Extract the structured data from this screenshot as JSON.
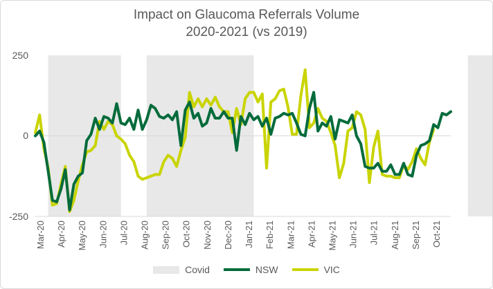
{
  "chart_data": {
    "type": "line",
    "title": "Impact on Glaucoma Referrals Volume",
    "subtitle": "2020-2021 (vs 2019)",
    "xlabel": "",
    "ylabel": "",
    "ylim": [
      -250,
      250
    ],
    "yticks": [
      "250",
      "0",
      "-250"
    ],
    "grid": false,
    "legend_position": "bottom",
    "x_tick_labels": [
      "Mar-20",
      "Apr-20",
      "May-20",
      "Jun-20",
      "Jul-20",
      "Aug-20",
      "Sep-20",
      "Oct-20",
      "Nov-20",
      "Dec-20",
      "Jan-21",
      "Feb-21",
      "Mar-21",
      "Apr-21",
      "May-21",
      "Jun-21",
      "Jul-21",
      "Aug-21",
      "Sep-21",
      "Oct-21"
    ],
    "covid_periods_week_index": [
      [
        3,
        20
      ],
      [
        26,
        51
      ],
      [
        101,
        130
      ]
    ],
    "series": [
      {
        "name": "NSW",
        "color": "#036b3b",
        "values": [
          0,
          15,
          -20,
          -110,
          -200,
          -205,
          -165,
          -105,
          -230,
          -150,
          -125,
          -115,
          -15,
          5,
          55,
          20,
          60,
          55,
          40,
          100,
          40,
          35,
          55,
          20,
          80,
          20,
          50,
          95,
          85,
          60,
          55,
          65,
          50,
          75,
          -30,
          80,
          105,
          55,
          70,
          30,
          40,
          85,
          55,
          55,
          75,
          55,
          55,
          -45,
          60,
          35,
          70,
          50,
          60,
          30,
          55,
          5,
          55,
          60,
          70,
          65,
          70,
          40,
          5,
          0,
          85,
          135,
          15,
          40,
          30,
          60,
          -10,
          50,
          45,
          40,
          65,
          0,
          -25,
          -95,
          -100,
          -100,
          -85,
          -110,
          -110,
          -90,
          -120,
          -120,
          -85,
          -120,
          -125,
          -60,
          -30,
          -25,
          -15,
          35,
          25,
          70,
          65,
          75
        ]
      },
      {
        "name": "VIC",
        "color": "#c9d400",
        "values": [
          10,
          65,
          -40,
          -100,
          -215,
          -210,
          -150,
          -95,
          -235,
          -200,
          -140,
          -90,
          -50,
          -45,
          -30,
          45,
          20,
          45,
          35,
          0,
          -10,
          -25,
          -60,
          -80,
          -125,
          -135,
          -130,
          -125,
          -120,
          -120,
          -80,
          -60,
          -70,
          -95,
          -45,
          -5,
          135,
          90,
          115,
          90,
          115,
          95,
          120,
          90,
          75,
          75,
          10,
          85,
          35,
          115,
          135,
          135,
          105,
          130,
          -100,
          105,
          115,
          140,
          145,
          90,
          5,
          5,
          125,
          205,
          25,
          40,
          85,
          55,
          45,
          10,
          -30,
          -130,
          -85,
          15,
          25,
          75,
          65,
          20,
          -145,
          -35,
          15,
          -120,
          -125,
          -125,
          -130,
          -130,
          -90,
          -105,
          -80,
          -40,
          -70,
          -90,
          -20,
          20
        ]
      }
    ]
  },
  "legend": {
    "covid_label": "Covid",
    "covid_color": "#e8e8e8"
  }
}
